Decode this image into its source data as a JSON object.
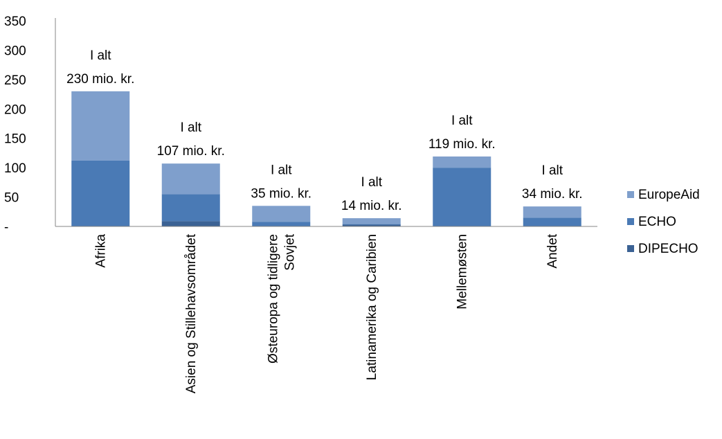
{
  "chart_data": {
    "type": "bar",
    "stacked": true,
    "categories": [
      [
        "Afrika"
      ],
      [
        "Asien og Stillehavsområdet"
      ],
      [
        "Østeuropa og tidligere",
        "Sovjet"
      ],
      [
        "Latinamerika og Caribien"
      ],
      [
        "Mellemøsten"
      ],
      [
        "Andet"
      ]
    ],
    "series": [
      {
        "name": "DIPECHO",
        "color": "#3b6294",
        "values": [
          0,
          9,
          0,
          3,
          0,
          0
        ]
      },
      {
        "name": "ECHO",
        "color": "#4a7ab5",
        "values": [
          112,
          46,
          8,
          1,
          100,
          15
        ]
      },
      {
        "name": "EuropeAid",
        "color": "#7f9fcc",
        "values": [
          118,
          52,
          27,
          10,
          19,
          19
        ]
      }
    ],
    "totals": [
      [
        "I alt",
        "230 mio. kr."
      ],
      [
        "I alt",
        "107 mio. kr."
      ],
      [
        "I alt",
        "35 mio. kr."
      ],
      [
        "I alt",
        "14 mio. kr."
      ],
      [
        "I alt",
        "119 mio. kr."
      ],
      [
        "I alt",
        "34 mio. kr."
      ]
    ],
    "yticks": [
      "-",
      "50",
      "100",
      "150",
      "200",
      "250",
      "300",
      "350"
    ],
    "ylim": [
      0,
      350
    ],
    "grid": false,
    "legend_position": "right"
  }
}
